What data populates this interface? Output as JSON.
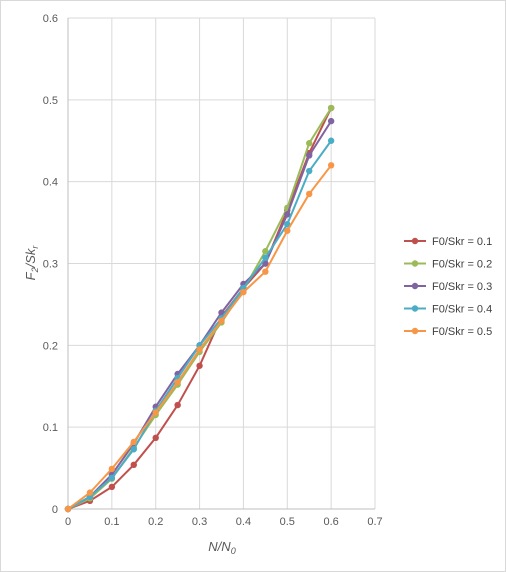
{
  "chart_data": {
    "type": "line",
    "xlabel": {
      "main": "N/N",
      "sub": "0"
    },
    "ylabel": {
      "main": "F",
      "sub1": "2",
      "mid": "/Sk",
      "sub2": "r"
    },
    "xlim": [
      0,
      0.7
    ],
    "ylim": [
      0,
      0.6
    ],
    "x_ticks": [
      "0",
      "0.1",
      "0.2",
      "0.3",
      "0.4",
      "0.5",
      "0.6",
      "0.7"
    ],
    "y_ticks": [
      "0",
      "0.1",
      "0.2",
      "0.3",
      "0.4",
      "0.5",
      "0.6"
    ],
    "grid": true,
    "legend_position": "right",
    "x": [
      0,
      0.05,
      0.1,
      0.15,
      0.2,
      0.25,
      0.3,
      0.35,
      0.4,
      0.45,
      0.5,
      0.55,
      0.6
    ],
    "series": [
      {
        "name": "F0/Skr = 0.1",
        "color": "#c0504d",
        "values": [
          0,
          0.01,
          0.027,
          0.054,
          0.087,
          0.127,
          0.175,
          0.235,
          0.27,
          0.3,
          0.365,
          0.435,
          0.49
        ]
      },
      {
        "name": "F0/Skr = 0.2",
        "color": "#9bbb59",
        "values": [
          0,
          0.013,
          0.037,
          0.075,
          0.115,
          0.152,
          0.192,
          0.228,
          0.268,
          0.315,
          0.368,
          0.447,
          0.49
        ]
      },
      {
        "name": "F0/Skr = 0.3",
        "color": "#8064a2",
        "values": [
          0,
          0.015,
          0.042,
          0.08,
          0.125,
          0.165,
          0.2,
          0.24,
          0.275,
          0.3,
          0.36,
          0.432,
          0.474
        ]
      },
      {
        "name": "F0/Skr = 0.4",
        "color": "#4bacc6",
        "values": [
          0,
          0.015,
          0.038,
          0.073,
          0.12,
          0.16,
          0.2,
          0.233,
          0.27,
          0.307,
          0.348,
          0.413,
          0.45
        ]
      },
      {
        "name": "F0/Skr = 0.5",
        "color": "#f79646",
        "values": [
          0,
          0.02,
          0.049,
          0.082,
          0.118,
          0.155,
          0.195,
          0.23,
          0.265,
          0.29,
          0.34,
          0.385,
          0.42
        ]
      }
    ]
  }
}
